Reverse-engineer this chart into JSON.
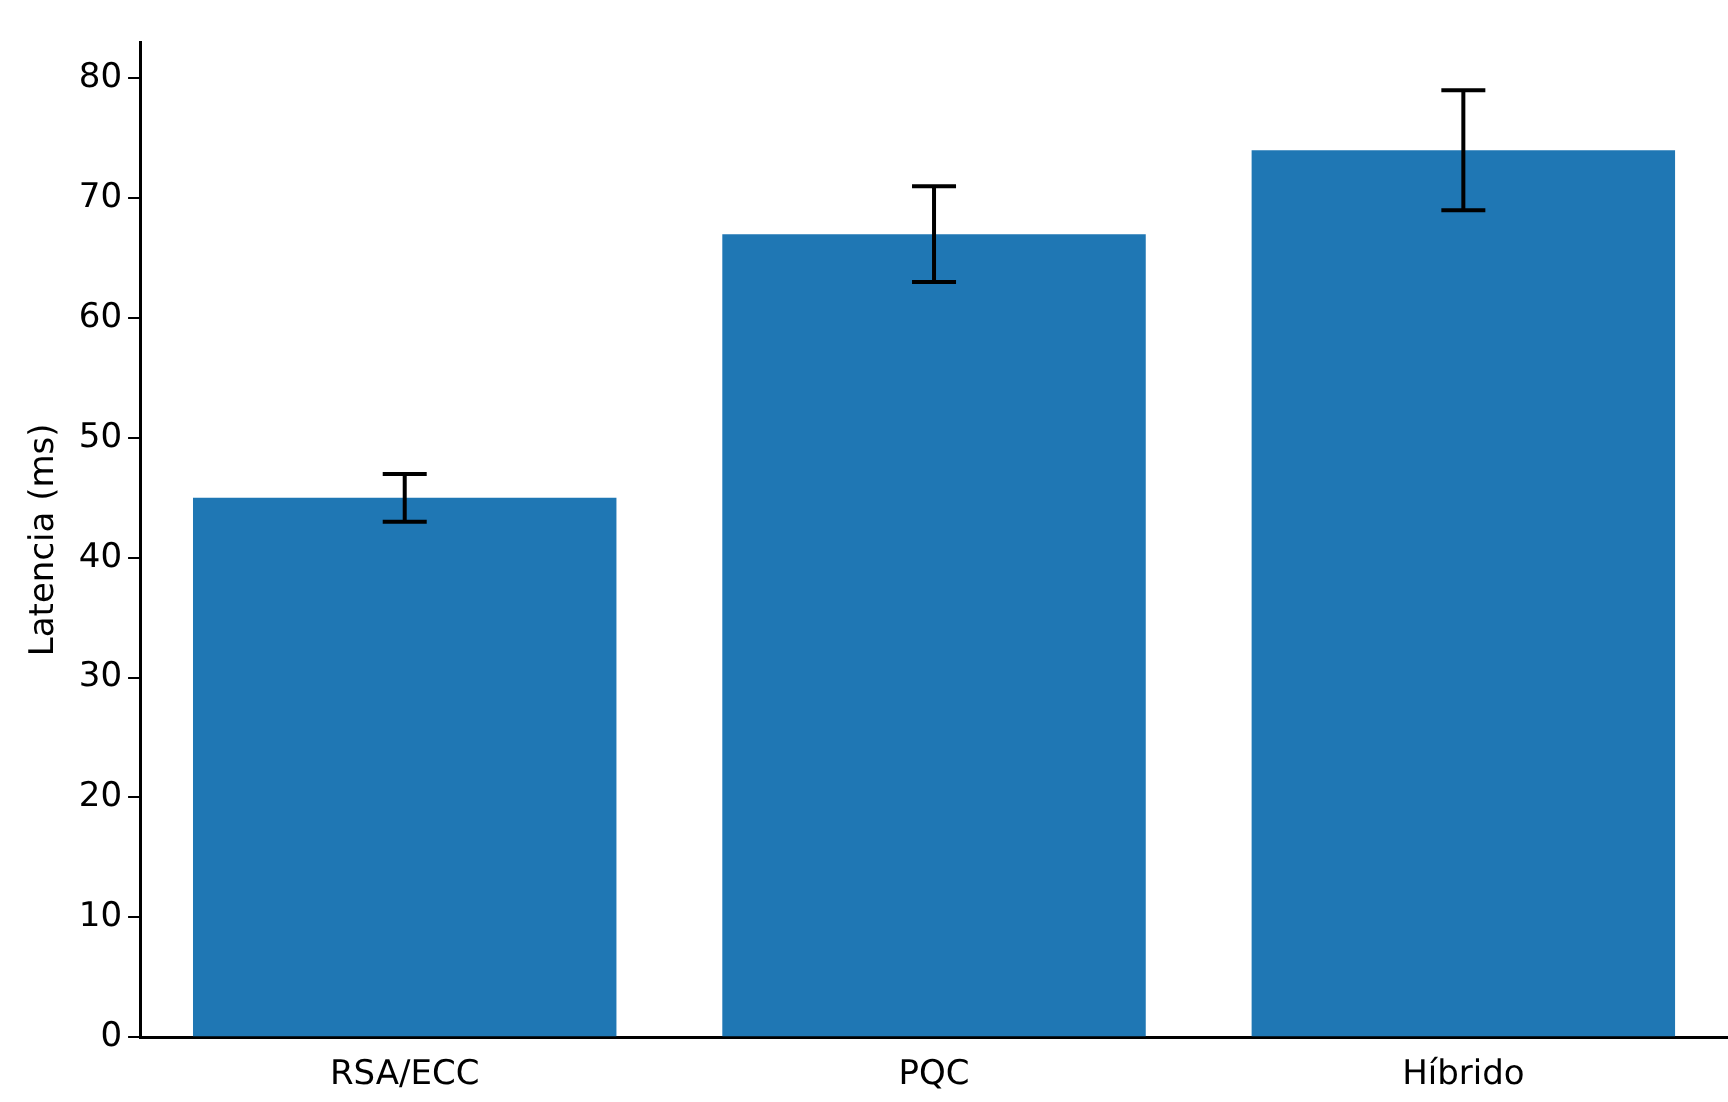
{
  "chart_data": {
    "type": "bar",
    "ylabel": "Latencia (ms)",
    "categories": [
      "RSA/ECC",
      "PQC",
      "Híbrido"
    ],
    "values": [
      45,
      67,
      74
    ],
    "errors": [
      2,
      4,
      5
    ],
    "color": "#1f77b4",
    "ylim": [
      0,
      83
    ],
    "yticks": [
      0,
      10,
      20,
      30,
      40,
      50,
      60,
      70,
      80
    ],
    "grid": false,
    "legend": false
  }
}
